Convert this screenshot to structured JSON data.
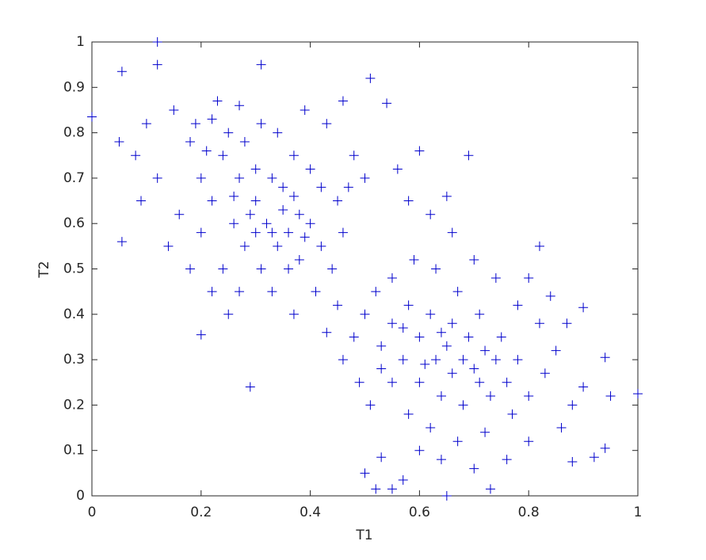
{
  "chart_data": {
    "type": "scatter",
    "x_label": "T1",
    "y_label": "T2",
    "xlim": [
      0,
      1
    ],
    "ylim": [
      0,
      1
    ],
    "xticks": [
      0,
      0.2,
      0.4,
      0.6,
      0.8,
      1
    ],
    "yticks": [
      0,
      0.1,
      0.2,
      0.3,
      0.4,
      0.5,
      0.6,
      0.7,
      0.8,
      0.9,
      1
    ],
    "marker": "+",
    "series": [
      {
        "color": "#0000cc",
        "x": [
          0.12,
          0.12,
          0.31,
          0.055,
          0.51,
          0,
          0.055,
          0.2,
          0.29,
          0.5,
          0.52,
          0.55,
          0.57,
          0.65,
          0.73,
          1.0,
          0.95,
          0.94,
          0.94,
          0.9,
          0.69,
          0.54,
          0.46,
          0.53,
          0.82,
          0.92,
          0.88,
          0.25,
          0.28,
          0.22,
          0.3,
          0.33,
          0.35,
          0.38,
          0.36,
          0.32,
          0.3,
          0.27,
          0.24,
          0.4,
          0.42,
          0.38,
          0.34,
          0.31,
          0.28,
          0.26,
          0.22,
          0.2,
          0.18,
          0.15,
          0.1,
          0.08,
          0.12,
          0.16,
          0.2,
          0.24,
          0.27,
          0.33,
          0.37,
          0.41,
          0.44,
          0.46,
          0.45,
          0.42,
          0.4,
          0.37,
          0.34,
          0.31,
          0.27,
          0.23,
          0.39,
          0.43,
          0.48,
          0.5,
          0.47,
          0.29,
          0.35,
          0.37,
          0.39,
          0.33,
          0.36,
          0.3,
          0.26,
          0.21,
          0.19,
          0.05,
          0.09,
          0.14,
          0.18,
          0.22,
          0.25,
          0.6,
          0.63,
          0.65,
          0.68,
          0.7,
          0.72,
          0.66,
          0.62,
          0.58,
          0.55,
          0.57,
          0.6,
          0.64,
          0.68,
          0.73,
          0.76,
          0.78,
          0.75,
          0.71,
          0.67,
          0.63,
          0.59,
          0.55,
          0.52,
          0.5,
          0.53,
          0.55,
          0.58,
          0.62,
          0.67,
          0.72,
          0.77,
          0.8,
          0.83,
          0.85,
          0.82,
          0.78,
          0.74,
          0.7,
          0.66,
          0.62,
          0.58,
          0.56,
          0.6,
          0.65,
          0.48,
          0.46,
          0.45,
          0.43,
          0.49,
          0.51,
          0.6,
          0.64,
          0.7,
          0.76,
          0.8,
          0.86,
          0.88,
          0.9,
          0.87,
          0.84,
          0.8,
          0.66,
          0.69,
          0.61,
          0.64,
          0.71,
          0.74,
          0.57,
          0.53
        ],
        "y": [
          1.0,
          0.95,
          0.95,
          0.935,
          0.92,
          0.835,
          0.56,
          0.355,
          0.24,
          0.05,
          0.015,
          0.015,
          0.035,
          0,
          0.015,
          0.225,
          0.22,
          0.105,
          0.305,
          0.415,
          0.75,
          0.865,
          0.87,
          0.085,
          0.55,
          0.085,
          0.075,
          0.8,
          0.78,
          0.83,
          0.72,
          0.7,
          0.68,
          0.62,
          0.58,
          0.6,
          0.65,
          0.7,
          0.75,
          0.6,
          0.55,
          0.52,
          0.55,
          0.5,
          0.55,
          0.6,
          0.65,
          0.7,
          0.78,
          0.85,
          0.82,
          0.75,
          0.7,
          0.62,
          0.58,
          0.5,
          0.45,
          0.45,
          0.4,
          0.45,
          0.5,
          0.58,
          0.65,
          0.68,
          0.72,
          0.75,
          0.8,
          0.82,
          0.86,
          0.87,
          0.85,
          0.82,
          0.75,
          0.7,
          0.68,
          0.62,
          0.63,
          0.66,
          0.57,
          0.58,
          0.5,
          0.58,
          0.66,
          0.76,
          0.82,
          0.78,
          0.65,
          0.55,
          0.5,
          0.45,
          0.4,
          0.35,
          0.3,
          0.33,
          0.3,
          0.28,
          0.32,
          0.38,
          0.4,
          0.42,
          0.38,
          0.3,
          0.25,
          0.22,
          0.2,
          0.22,
          0.25,
          0.3,
          0.35,
          0.4,
          0.45,
          0.5,
          0.52,
          0.48,
          0.45,
          0.4,
          0.33,
          0.25,
          0.18,
          0.15,
          0.12,
          0.14,
          0.18,
          0.22,
          0.27,
          0.32,
          0.38,
          0.42,
          0.48,
          0.52,
          0.58,
          0.62,
          0.65,
          0.72,
          0.76,
          0.66,
          0.35,
          0.3,
          0.42,
          0.36,
          0.25,
          0.2,
          0.1,
          0.08,
          0.06,
          0.08,
          0.12,
          0.15,
          0.2,
          0.24,
          0.38,
          0.44,
          0.48,
          0.27,
          0.35,
          0.29,
          0.36,
          0.25,
          0.3,
          0.37,
          0.28
        ]
      }
    ]
  }
}
